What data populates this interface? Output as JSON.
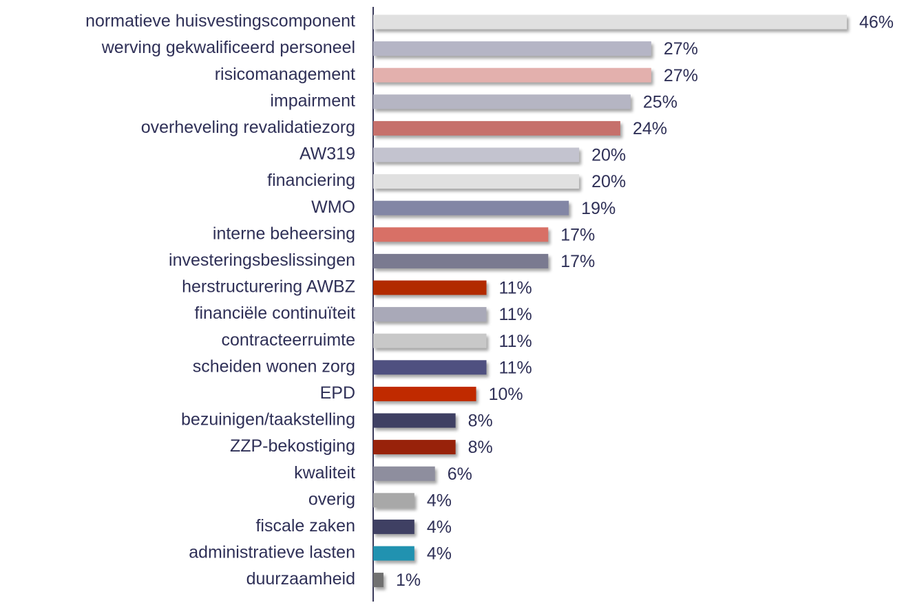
{
  "chart_data": {
    "type": "barh",
    "categories": [
      "normatieve huisvestingscomponent",
      "werving gekwalificeerd personeel",
      "risicomanagement",
      "impairment",
      "overheveling revalidatiezorg",
      "AW319",
      "financiering",
      "WMO",
      "interne beheersing",
      "investeringsbeslissingen",
      "herstructurering AWBZ",
      "financiële continuïteit",
      "contracteerruimte",
      "scheiden wonen zorg",
      "EPD",
      "bezuinigen/taakstelling",
      "ZZP-bekostiging",
      "kwaliteit",
      "overig ",
      "fiscale zaken",
      "administratieve lasten",
      "duurzaamheid"
    ],
    "values": [
      46,
      27,
      27,
      25,
      24,
      20,
      20,
      19,
      17,
      17,
      11,
      11,
      11,
      11,
      10,
      8,
      8,
      6,
      4,
      4,
      4,
      1
    ],
    "value_labels": [
      "46%",
      "27%",
      "27%",
      "25%",
      "24%",
      "20%",
      "20%",
      "19%",
      "17%",
      "17%",
      "11%",
      "11%",
      "11%",
      "11%",
      "10%",
      "8%",
      "8%",
      "6%",
      "4%",
      "4%",
      "4%",
      "1%"
    ],
    "colors": [
      "#e0e0e0",
      "#b5b5c5",
      "#e3b0ad",
      "#b5b5c3",
      "#c6706b",
      "#c3c3cf",
      "#e0e0e0",
      "#8286a5",
      "#d87066",
      "#7a7a90",
      "#b22a00",
      "#a9a9b8",
      "#c8c8c8",
      "#4f5080",
      "#c02a00",
      "#3f4063",
      "#98220a",
      "#8e8e9e",
      "#a8a8a8",
      "#3f4063",
      "#2192b0",
      "#707070"
    ]
  }
}
